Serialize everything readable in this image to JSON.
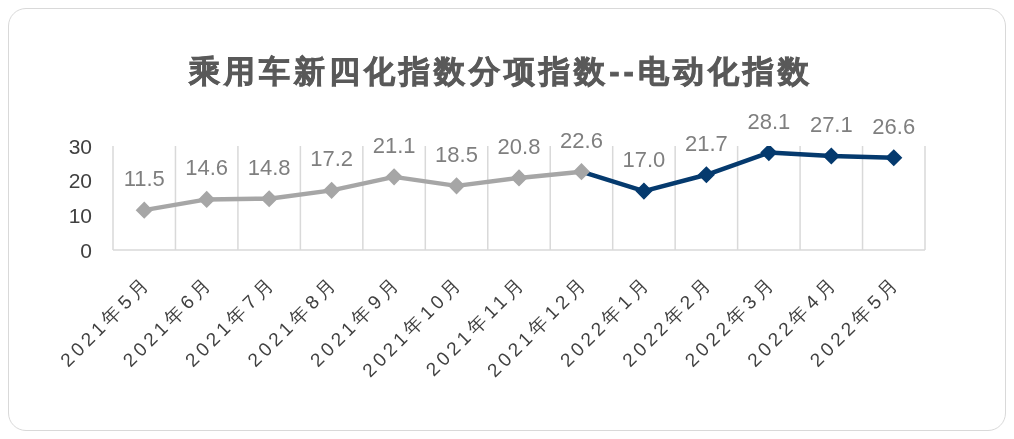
{
  "chart_data": {
    "type": "line",
    "title": "乘用车新四化指数分项指数--电动化指数",
    "categories": [
      "2021年5月",
      "2021年6月",
      "2021年7月",
      "2021年8月",
      "2021年9月",
      "2021年10月",
      "2021年11月",
      "2021年12月",
      "2022年1月",
      "2022年2月",
      "2022年3月",
      "2022年4月",
      "2022年5月"
    ],
    "values": [
      11.5,
      14.6,
      14.8,
      17.2,
      21.1,
      18.5,
      20.8,
      22.6,
      17.0,
      21.7,
      28.1,
      27.1,
      26.6
    ],
    "colors": [
      "#a6a6a6",
      "#a6a6a6",
      "#a6a6a6",
      "#a6a6a6",
      "#a6a6a6",
      "#a6a6a6",
      "#a6a6a6",
      "#a6a6a6",
      "#053a6e",
      "#053a6e",
      "#053a6e",
      "#053a6e",
      "#053a6e"
    ],
    "value_labels": [
      "11.5",
      "14.6",
      "14.8",
      "17.2",
      "21.1",
      "18.5",
      "20.8",
      "22.6",
      "17.0",
      "21.7",
      "28.1",
      "27.1",
      "26.6"
    ],
    "ylim": [
      0,
      30
    ],
    "yticks": [
      0,
      10,
      20,
      30
    ],
    "grid": "x",
    "marker": "diamond",
    "line_style": "solid"
  }
}
